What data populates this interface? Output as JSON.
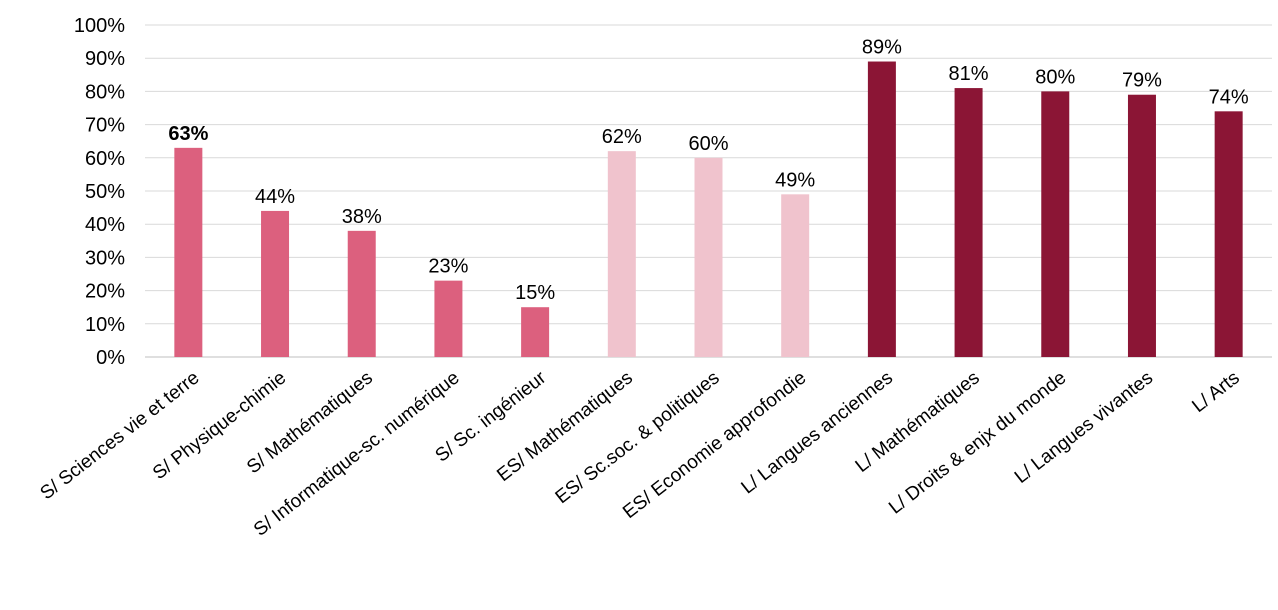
{
  "chart_data": {
    "type": "bar",
    "title": "",
    "xlabel": "",
    "ylabel": "",
    "ylim": [
      0,
      100
    ],
    "yticks": [
      "0%",
      "10%",
      "20%",
      "30%",
      "40%",
      "50%",
      "60%",
      "70%",
      "80%",
      "90%",
      "100%"
    ],
    "grid": true,
    "legend": "none",
    "categories": [
      "S/ Sciences vie et terre",
      "S/ Physique-chimie",
      "S/ Mathématiques",
      "S/ Informatique-sc. numérique",
      "S/ Sc. ingénieur",
      "ES/ Mathématiques",
      "ES/ Sc.soc. & politiques",
      "ES/ Economie approfondie",
      "L/ Langues anciennes",
      "L/ Mathématiques",
      "L/ Droits & enjx du monde",
      "L/ Langues vivantes",
      "L/ Arts"
    ],
    "values": [
      63,
      44,
      38,
      23,
      15,
      62,
      60,
      49,
      89,
      81,
      80,
      79,
      74
    ],
    "value_labels": [
      "63%",
      "44%",
      "38%",
      "23%",
      "15%",
      "62%",
      "60%",
      "49%",
      "89%",
      "81%",
      "80%",
      "79%",
      "74%"
    ],
    "bold_labels": [
      true,
      false,
      false,
      false,
      false,
      false,
      false,
      false,
      false,
      false,
      false,
      false,
      false
    ],
    "bar_colors": [
      "#dc607e",
      "#dc607e",
      "#dc607e",
      "#dc607e",
      "#dc607e",
      "#f0c3cd",
      "#f0c3cd",
      "#f0c3cd",
      "#8b1535",
      "#8b1535",
      "#8b1535",
      "#8b1535",
      "#8b1535"
    ]
  }
}
